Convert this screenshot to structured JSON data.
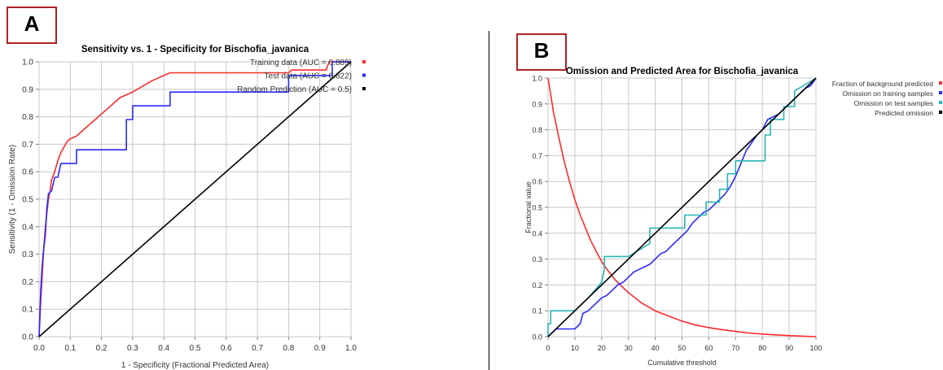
{
  "panels": [
    {
      "label": "A"
    },
    {
      "label": "B"
    }
  ],
  "chart_data": [
    {
      "type": "line",
      "title": "Sensitivity vs. 1 - Specificity for Bischofia_javanica",
      "xlabel": "1 - Specificity  (Fractional Predicted Area)",
      "ylabel": "Sensitivity (1 - Omission Rate)",
      "xlim": [
        0,
        1
      ],
      "ylim": [
        0,
        1
      ],
      "xticks": [
        "0.0",
        "0.1",
        "0.2",
        "0.3",
        "0.4",
        "0.5",
        "0.6",
        "0.7",
        "0.8",
        "0.9",
        "1.0"
      ],
      "yticks": [
        "0.0",
        "0.1",
        "0.2",
        "0.3",
        "0.4",
        "0.5",
        "0.6",
        "0.7",
        "0.8",
        "0.9",
        "1.0"
      ],
      "grid": true,
      "legend_position": "right",
      "series": [
        {
          "name": "Training data (AUC = 0.889)",
          "color": "#ff2a2a",
          "x": [
            0,
            0.005,
            0.01,
            0.015,
            0.02,
            0.025,
            0.03,
            0.035,
            0.04,
            0.05,
            0.06,
            0.07,
            0.08,
            0.09,
            0.1,
            0.12,
            0.14,
            0.16,
            0.18,
            0.2,
            0.22,
            0.24,
            0.26,
            0.28,
            0.3,
            0.33,
            0.36,
            0.38,
            0.4,
            0.42,
            0.5,
            0.6,
            0.7,
            0.8,
            0.81,
            0.83,
            0.92,
            0.93,
            1.0
          ],
          "y": [
            0,
            0.12,
            0.22,
            0.32,
            0.4,
            0.45,
            0.5,
            0.53,
            0.57,
            0.6,
            0.64,
            0.67,
            0.69,
            0.71,
            0.72,
            0.73,
            0.75,
            0.77,
            0.79,
            0.81,
            0.83,
            0.85,
            0.87,
            0.88,
            0.89,
            0.91,
            0.93,
            0.94,
            0.95,
            0.96,
            0.96,
            0.96,
            0.96,
            0.96,
            0.97,
            0.97,
            0.97,
            1.0,
            1.0
          ]
        },
        {
          "name": "Test data (AUC = 0.822)",
          "color": "#2a2aff",
          "x": [
            0,
            0.005,
            0.01,
            0.015,
            0.02,
            0.025,
            0.03,
            0.04,
            0.05,
            0.06,
            0.07,
            0.08,
            0.09,
            0.12,
            0.12,
            0.28,
            0.28,
            0.3,
            0.3,
            0.32,
            0.32,
            0.42,
            0.42,
            0.8,
            0.8,
            0.94,
            0.94,
            1.0
          ],
          "y": [
            0,
            0.16,
            0.26,
            0.32,
            0.37,
            0.47,
            0.52,
            0.53,
            0.58,
            0.58,
            0.63,
            0.63,
            0.63,
            0.63,
            0.68,
            0.68,
            0.79,
            0.79,
            0.84,
            0.84,
            0.84,
            0.84,
            0.89,
            0.89,
            0.95,
            0.95,
            1.0,
            1.0
          ]
        },
        {
          "name": "Random Prediction (AUC = 0.5)",
          "color": "#000000",
          "x": [
            0,
            1
          ],
          "y": [
            0,
            1
          ]
        }
      ]
    },
    {
      "type": "line",
      "title": "Omission and Predicted Area for Bischofia_javanica",
      "xlabel": "Cumulative threshold",
      "ylabel": "Fractional value",
      "xlim": [
        0,
        100
      ],
      "ylim": [
        0,
        1
      ],
      "xticks": [
        "0",
        "10",
        "20",
        "30",
        "40",
        "50",
        "60",
        "70",
        "80",
        "90",
        "100"
      ],
      "yticks": [
        "0.0",
        "0.1",
        "0.2",
        "0.3",
        "0.4",
        "0.5",
        "0.6",
        "0.7",
        "0.8",
        "0.9",
        "1.0"
      ],
      "grid": true,
      "legend_position": "right",
      "series": [
        {
          "name": "Fraction of background predicted",
          "color": "#ff2a2a",
          "x": [
            0,
            2,
            4,
            6,
            8,
            10,
            12,
            14,
            16,
            18,
            20,
            22,
            25,
            28,
            30,
            35,
            40,
            45,
            50,
            55,
            60,
            65,
            70,
            75,
            80,
            85,
            90,
            95,
            100
          ],
          "y": [
            1.0,
            0.87,
            0.77,
            0.68,
            0.6,
            0.53,
            0.47,
            0.42,
            0.37,
            0.33,
            0.29,
            0.26,
            0.22,
            0.19,
            0.17,
            0.13,
            0.1,
            0.08,
            0.06,
            0.045,
            0.035,
            0.027,
            0.02,
            0.014,
            0.01,
            0.007,
            0.004,
            0.002,
            0.0
          ]
        },
        {
          "name": "Omission on training samples",
          "color": "#2a2aff",
          "x": [
            0,
            1,
            2,
            3,
            5,
            8,
            10,
            12,
            13,
            15,
            17,
            18,
            20,
            22,
            24,
            26,
            28,
            30,
            32,
            34,
            36,
            38,
            40,
            42,
            44,
            46,
            48,
            50,
            52,
            54,
            56,
            58,
            60,
            62,
            64,
            66,
            68,
            70,
            72,
            74,
            76,
            78,
            80,
            82,
            84,
            86,
            88,
            90,
            92,
            94,
            96,
            98,
            100
          ],
          "y": [
            0.0,
            0.01,
            0.02,
            0.03,
            0.03,
            0.03,
            0.03,
            0.05,
            0.09,
            0.1,
            0.12,
            0.13,
            0.15,
            0.16,
            0.18,
            0.2,
            0.21,
            0.23,
            0.25,
            0.26,
            0.27,
            0.28,
            0.3,
            0.32,
            0.33,
            0.35,
            0.37,
            0.39,
            0.41,
            0.44,
            0.46,
            0.48,
            0.49,
            0.51,
            0.53,
            0.55,
            0.58,
            0.62,
            0.67,
            0.72,
            0.75,
            0.78,
            0.8,
            0.84,
            0.85,
            0.86,
            0.88,
            0.9,
            0.92,
            0.94,
            0.96,
            0.97,
            1.0
          ]
        },
        {
          "name": "Omission on test samples",
          "color": "#2ab5b5",
          "x": [
            0,
            0,
            1,
            1,
            2,
            2,
            10,
            10,
            15,
            15,
            20,
            20,
            21,
            21,
            30,
            30,
            38,
            38,
            51,
            51,
            59,
            59,
            64,
            64,
            67,
            67,
            70,
            70,
            73,
            73,
            76,
            76,
            81,
            81,
            83,
            83,
            88,
            88,
            92,
            92,
            100
          ],
          "y": [
            0,
            0.05,
            0.05,
            0.1,
            0.1,
            0.1,
            0.1,
            0.1,
            0.15,
            0.15,
            0.21,
            0.21,
            0.26,
            0.31,
            0.31,
            0.31,
            0.36,
            0.42,
            0.42,
            0.47,
            0.47,
            0.52,
            0.52,
            0.57,
            0.57,
            0.63,
            0.63,
            0.68,
            0.68,
            0.68,
            0.68,
            0.68,
            0.68,
            0.78,
            0.78,
            0.84,
            0.84,
            0.89,
            0.89,
            0.95,
            1.0
          ]
        },
        {
          "name": "Predicted omission",
          "color": "#000000",
          "x": [
            0,
            100
          ],
          "y": [
            0,
            1
          ]
        }
      ]
    }
  ]
}
